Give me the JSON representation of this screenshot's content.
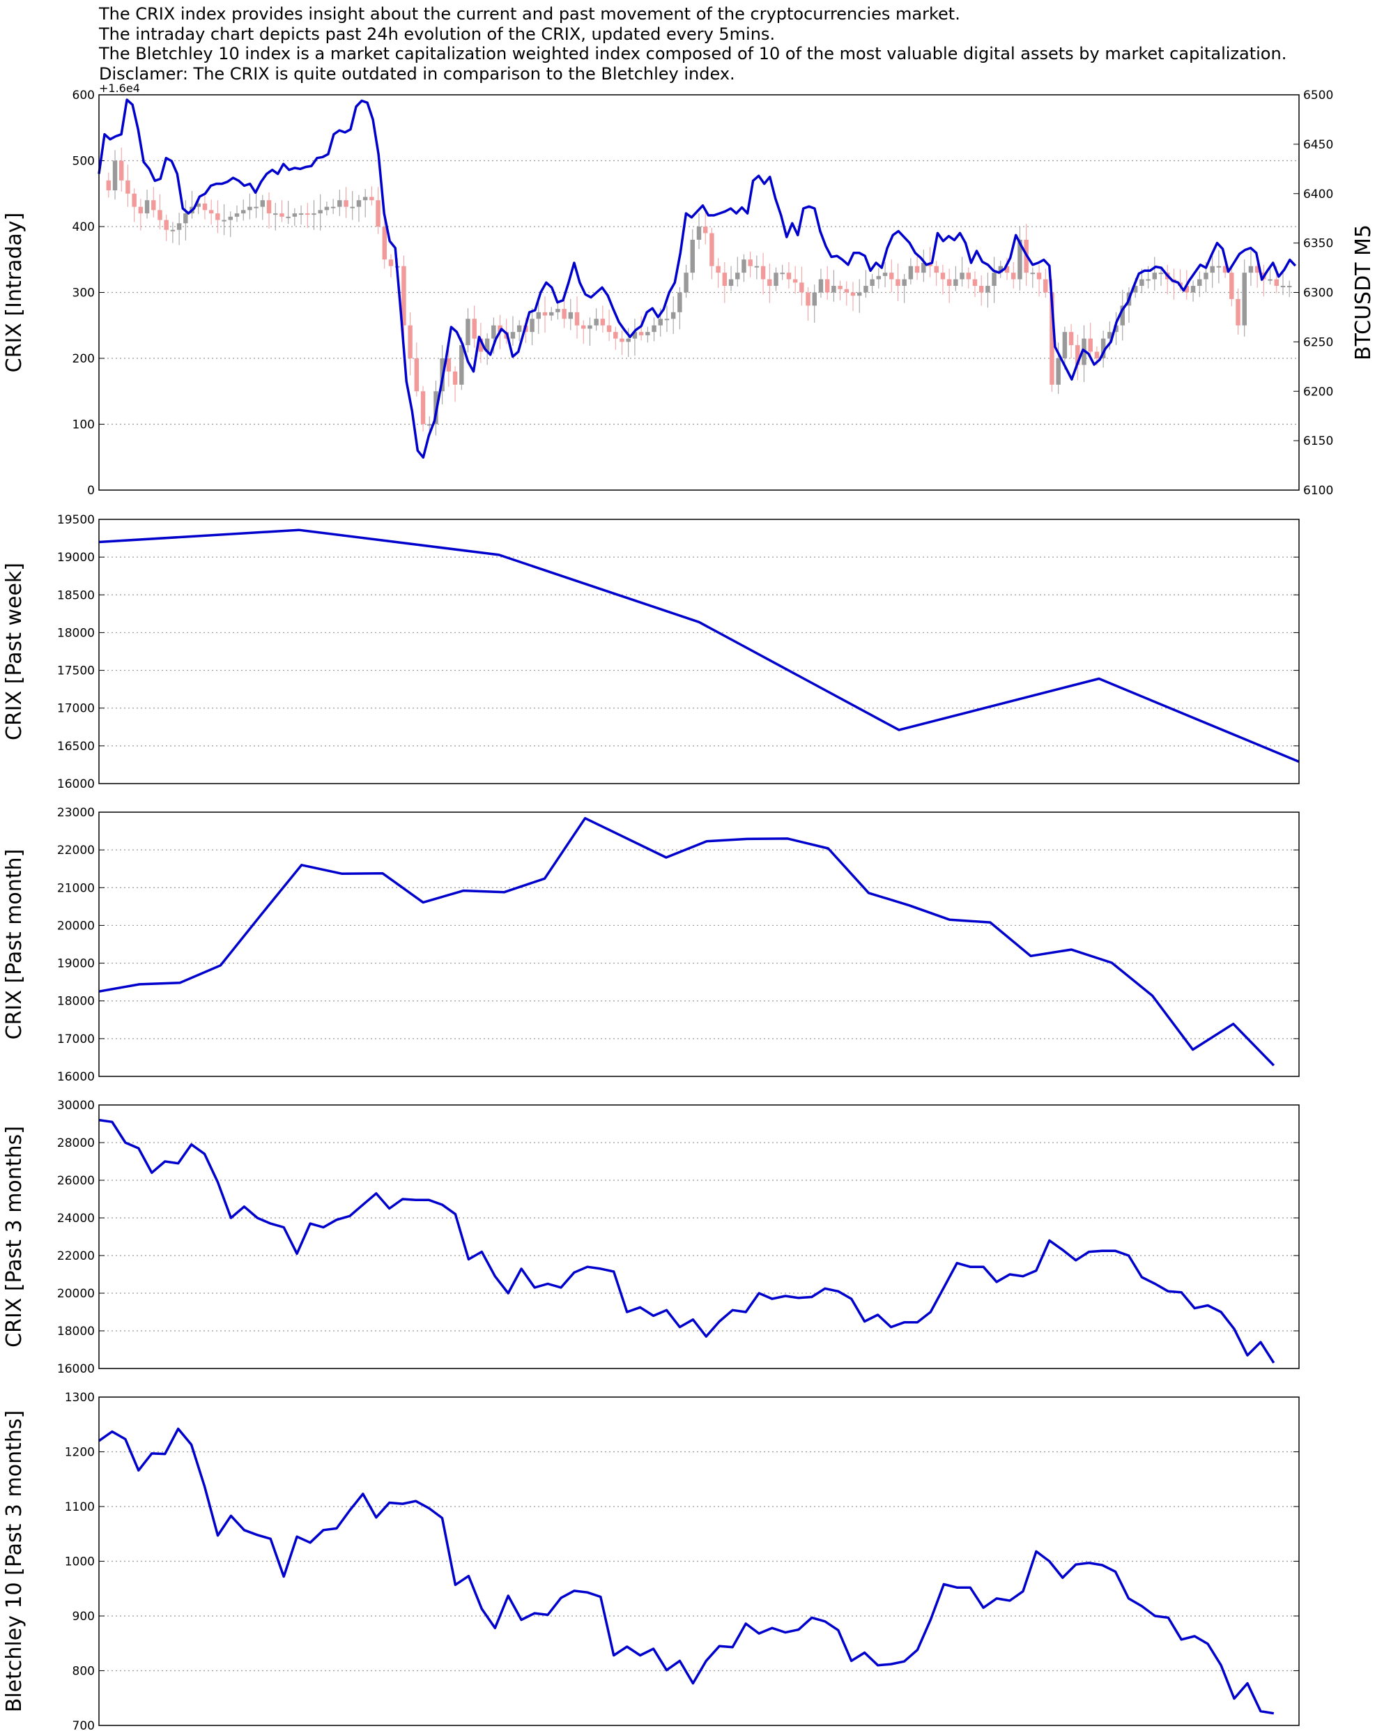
{
  "header": {
    "lines": [
      "The CRIX index provides insight about the current and past movement of the cryptocurrencies market.",
      "The intraday chart depicts past 24h evolution of the CRIX, updated every 5mins.",
      "The Bletchley 10 index is a market capitalization weighted index composed of 10 of the most valuable digital assets by market capitalization.",
      "Disclamer: The CRIX is quite outdated in comparison to the Bletchley index."
    ]
  },
  "colors": {
    "line": "#0000cd",
    "candle_up": "#999999",
    "candle_down": "#f29999",
    "grid": "#999999"
  },
  "chart_data": [
    {
      "id": "intraday",
      "type": "candlestick+line",
      "ylabel": "CRIX [Intraday]",
      "ylabel_right": "BTCUSDT M5",
      "offset_text": "+1.6e4",
      "ylim": [
        0,
        600
      ],
      "y_ticks": [
        0,
        100,
        200,
        300,
        400,
        500,
        600
      ],
      "ylim_right": [
        6100,
        6500
      ],
      "y_ticks_right": [
        6100,
        6150,
        6200,
        6250,
        6300,
        6350,
        6400,
        6450,
        6500
      ],
      "grid": true,
      "crix_close_approx": [
        470,
        455,
        500,
        470,
        450,
        430,
        420,
        440,
        425,
        410,
        395,
        395,
        405,
        420,
        430,
        435,
        425,
        420,
        410,
        410,
        415,
        420,
        425,
        430,
        430,
        440,
        420,
        420,
        415,
        415,
        420,
        420,
        418,
        420,
        425,
        430,
        430,
        440,
        430,
        430,
        440,
        445,
        440,
        400,
        350,
        340,
        340,
        250,
        200,
        150,
        100,
        100,
        150,
        200,
        180,
        160,
        220,
        260,
        230,
        210,
        230,
        250,
        240,
        230,
        240,
        250,
        240,
        260,
        270,
        265,
        270,
        275,
        260,
        270,
        250,
        245,
        250,
        260,
        250,
        240,
        230,
        225,
        230,
        240,
        235,
        240,
        250,
        260,
        260,
        270,
        300,
        330,
        380,
        400,
        390,
        340,
        330,
        310,
        320,
        330,
        350,
        340,
        340,
        320,
        310,
        330,
        330,
        320,
        315,
        300,
        280,
        300,
        320,
        300,
        310,
        305,
        300,
        295,
        300,
        310,
        320,
        325,
        330,
        320,
        310,
        320,
        340,
        330,
        345,
        340,
        330,
        320,
        310,
        320,
        330,
        320,
        310,
        300,
        310,
        330,
        340,
        330,
        320,
        380,
        330,
        330,
        320,
        300,
        160,
        200,
        240,
        220,
        190,
        230,
        210,
        200,
        230,
        240,
        250,
        280,
        300,
        310,
        320,
        320,
        330,
        330,
        320,
        315,
        310,
        300,
        310,
        320,
        330,
        340,
        340,
        330,
        290,
        250,
        330,
        340,
        330,
        320,
        320,
        310,
        310,
        310
      ],
      "btc_line_approx": [
        6420,
        6460,
        6455,
        6458,
        6460,
        6495,
        6490,
        6465,
        6432,
        6425,
        6413,
        6415,
        6436,
        6433,
        6420,
        6385,
        6380,
        6385,
        6397,
        6400,
        6408,
        6410,
        6410,
        6412,
        6416,
        6413,
        6408,
        6410,
        6401,
        6412,
        6420,
        6424,
        6420,
        6430,
        6424,
        6426,
        6425,
        6427,
        6428,
        6436,
        6437,
        6440,
        6460,
        6464,
        6462,
        6465,
        6488,
        6494,
        6492,
        6475,
        6440,
        6380,
        6352,
        6345,
        6280,
        6210,
        6180,
        6140,
        6133,
        6155,
        6170,
        6200,
        6230,
        6265,
        6260,
        6248,
        6230,
        6220,
        6255,
        6243,
        6237,
        6253,
        6263,
        6258,
        6235,
        6240,
        6260,
        6280,
        6282,
        6300,
        6310,
        6305,
        6290,
        6292,
        6310,
        6330,
        6310,
        6298,
        6295,
        6300,
        6305,
        6297,
        6283,
        6270,
        6262,
        6255,
        6262,
        6266,
        6280,
        6284,
        6275,
        6283,
        6300,
        6310,
        6340,
        6380,
        6376,
        6382,
        6388,
        6378,
        6378,
        6380,
        6382,
        6385,
        6380,
        6386,
        6380,
        6413,
        6418,
        6410,
        6417,
        6395,
        6378,
        6356,
        6370,
        6358,
        6385,
        6387,
        6385,
        6362,
        6347,
        6336,
        6337,
        6333,
        6328,
        6340,
        6340,
        6337,
        6322,
        6330,
        6325,
        6345,
        6358,
        6362,
        6356,
        6350,
        6340,
        6335,
        6328,
        6330,
        6360,
        6352,
        6357,
        6353,
        6360,
        6350,
        6330,
        6342,
        6331,
        6328,
        6322,
        6320,
        6324,
        6335,
        6358,
        6347,
        6337,
        6328,
        6330,
        6333,
        6327,
        6245,
        6234,
        6223,
        6212,
        6228,
        6242,
        6238,
        6227,
        6232,
        6243,
        6250,
        6270,
        6282,
        6290,
        6305,
        6319,
        6322,
        6322,
        6326,
        6325,
        6318,
        6312,
        6310,
        6302,
        6312,
        6320,
        6328,
        6325,
        6338,
        6350,
        6344,
        6321,
        6330,
        6339,
        6343,
        6345,
        6340,
        6313,
        6322,
        6330,
        6316,
        6323,
        6333,
        6327
      ]
    },
    {
      "id": "past-week",
      "type": "line",
      "ylabel": "CRIX [Past week]",
      "ylim": [
        16000,
        19500
      ],
      "y_ticks": [
        16000,
        16500,
        17000,
        17500,
        18000,
        18500,
        19000,
        19500
      ],
      "grid": true,
      "values": [
        19200,
        19360,
        19030,
        18140,
        16710,
        17390,
        16290
      ]
    },
    {
      "id": "past-month",
      "type": "line",
      "ylabel": "CRIX [Past month]",
      "ylim": [
        16000,
        23000
      ],
      "y_ticks": [
        16000,
        17000,
        18000,
        19000,
        20000,
        21000,
        22000,
        23000
      ],
      "grid": true,
      "values": [
        18250,
        18440,
        18480,
        18940,
        20280,
        21600,
        21370,
        21380,
        20610,
        20920,
        20880,
        21240,
        22840,
        22320,
        21800,
        22230,
        22290,
        22300,
        22040,
        20860,
        20530,
        20150,
        20080,
        19190,
        19360,
        19010,
        18140,
        16710,
        17390,
        16290
      ]
    },
    {
      "id": "past-3-months",
      "type": "line",
      "ylabel": "CRIX [Past 3 months]",
      "ylim": [
        16000,
        30000
      ],
      "y_ticks": [
        16000,
        18000,
        20000,
        22000,
        24000,
        26000,
        28000,
        30000
      ],
      "grid": true,
      "values": [
        29200,
        29100,
        28000,
        27700,
        26400,
        27000,
        26900,
        27900,
        27400,
        25900,
        24000,
        24600,
        24000,
        23700,
        23500,
        22100,
        23700,
        23500,
        23900,
        24100,
        24700,
        25300,
        24500,
        25000,
        24950,
        24950,
        24700,
        24200,
        21800,
        22200,
        20900,
        20000,
        21300,
        20300,
        20500,
        20300,
        21100,
        21400,
        21300,
        21150,
        19000,
        19250,
        18800,
        19100,
        18200,
        18600,
        17700,
        18500,
        19100,
        19000,
        20000,
        19700,
        19850,
        19750,
        19800,
        20250,
        20100,
        19700,
        18500,
        18850,
        18200,
        18450,
        18450,
        19000,
        20300,
        21600,
        21400,
        21400,
        20600,
        21000,
        20900,
        21200,
        22800,
        22300,
        21750,
        22200,
        22250,
        22250,
        22000,
        20850,
        20500,
        20100,
        20050,
        19200,
        19350,
        19000,
        18100,
        16700,
        17400,
        16300
      ]
    },
    {
      "id": "bletchley",
      "type": "line",
      "ylabel": "Bletchley 10 [Past 3 months]",
      "ylim": [
        700,
        1300
      ],
      "y_ticks": [
        700,
        800,
        900,
        1000,
        1100,
        1200,
        1300
      ],
      "grid": true,
      "values": [
        1220,
        1237,
        1223,
        1166,
        1197,
        1196,
        1242,
        1213,
        1137,
        1047,
        1083,
        1057,
        1048,
        1041,
        972,
        1045,
        1034,
        1057,
        1060,
        1093,
        1123,
        1080,
        1107,
        1105,
        1110,
        1097,
        1079,
        957,
        973,
        913,
        878,
        937,
        893,
        905,
        902,
        933,
        946,
        943,
        935,
        828,
        844,
        828,
        840,
        801,
        818,
        777,
        818,
        845,
        843,
        886,
        868,
        878,
        870,
        875,
        897,
        890,
        874,
        818,
        833,
        810,
        812,
        817,
        838,
        893,
        958,
        952,
        952,
        915,
        932,
        928,
        945,
        1018,
        1000,
        970,
        994,
        997,
        993,
        981,
        932,
        918,
        900,
        897,
        857,
        863,
        849,
        810,
        749,
        777,
        726,
        722
      ]
    }
  ]
}
